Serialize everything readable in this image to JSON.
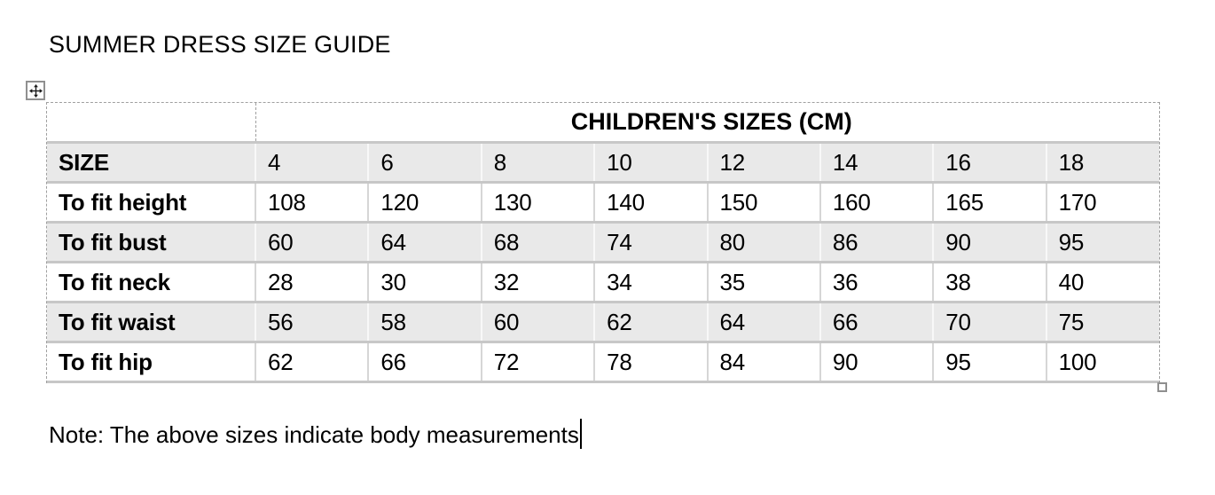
{
  "document": {
    "title": "SUMMER DRESS SIZE GUIDE",
    "note": "Note: The above sizes indicate body measurements"
  },
  "table": {
    "group_header": "CHILDREN'S SIZES (CM)",
    "columns": [
      "SIZE",
      "4",
      "6",
      "8",
      "10",
      "12",
      "14",
      "16",
      "18"
    ],
    "rows": [
      {
        "label": "To fit height",
        "values": [
          "108",
          "120",
          "130",
          "140",
          "150",
          "160",
          "165",
          "170"
        ]
      },
      {
        "label": "To fit bust",
        "values": [
          "60",
          "64",
          "68",
          "74",
          "80",
          "86",
          "90",
          "95"
        ]
      },
      {
        "label": "To fit neck",
        "values": [
          "28",
          "30",
          "32",
          "34",
          "35",
          "36",
          "38",
          "40"
        ]
      },
      {
        "label": "To fit waist",
        "values": [
          "56",
          "58",
          "60",
          "62",
          "64",
          "66",
          "70",
          "75"
        ]
      },
      {
        "label": "To fit hip",
        "values": [
          "62",
          "66",
          "72",
          "78",
          "84",
          "90",
          "95",
          "100"
        ]
      }
    ]
  },
  "icons": {
    "table_move_handle": "four-way-move-arrows",
    "table_resize_handle": "small-square"
  },
  "colors": {
    "row_shading": "#e9e9e9",
    "gridline_solid": "#c7c7c7",
    "gridline_dashed": "#9f9f9f",
    "text": "#000000",
    "background": "#ffffff"
  }
}
